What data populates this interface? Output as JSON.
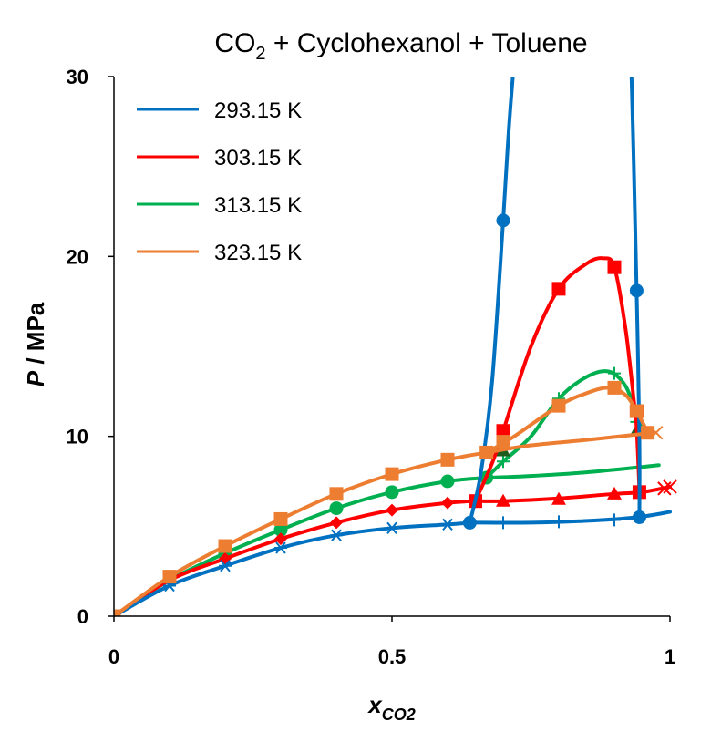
{
  "chart_data": {
    "type": "line",
    "title": "CO₂ + Cyclohexanol + Toluene",
    "title_main": "CO",
    "title_sub": "2",
    "title_rest": " + Cyclohexanol + Toluene",
    "xlabel_main": "x",
    "xlabel_sub": "CO2",
    "ylabel_main": "P",
    "ylabel_rest": " / MPa",
    "xlim": [
      0,
      1
    ],
    "ylim": [
      0,
      30
    ],
    "xticks": [
      0,
      0.5,
      1
    ],
    "xtick_labels": [
      "0",
      "0.5",
      "1"
    ],
    "yticks": [
      0,
      10,
      20,
      30
    ],
    "ytick_labels": [
      "0",
      "10",
      "20",
      "30"
    ],
    "grid": false,
    "legend_position": "top-left",
    "series": [
      {
        "name": "293.15 K",
        "color": "#0070C0",
        "bubble_curve": [
          [
            0,
            0
          ],
          [
            0.1,
            1.7
          ],
          [
            0.2,
            2.8
          ],
          [
            0.3,
            3.8
          ],
          [
            0.4,
            4.5
          ],
          [
            0.5,
            4.9
          ],
          [
            0.6,
            5.1
          ],
          [
            0.64,
            5.2
          ]
        ],
        "bubble_marker": "asterisk",
        "bubble_points": [
          [
            0.1,
            1.7
          ],
          [
            0.2,
            2.8
          ],
          [
            0.3,
            3.8
          ],
          [
            0.4,
            4.5
          ],
          [
            0.5,
            4.9
          ],
          [
            0.6,
            5.1
          ]
        ],
        "dew_curve": [
          [
            0.64,
            5.2
          ],
          [
            0.75,
            5.2
          ],
          [
            0.85,
            5.3
          ],
          [
            0.94,
            5.5
          ],
          [
            1.0,
            5.8
          ]
        ],
        "dew_marker": "plus",
        "dew_points": [
          [
            0.7,
            5.2
          ],
          [
            0.8,
            5.25
          ],
          [
            0.9,
            5.35
          ]
        ],
        "critical_curve": [
          [
            0.64,
            5.2
          ],
          [
            0.66,
            8
          ],
          [
            0.68,
            13
          ],
          [
            0.7,
            22
          ],
          [
            0.71,
            27
          ],
          [
            0.72,
            31
          ]
        ],
        "critical_curve_b": [
          [
            0.93,
            31
          ],
          [
            0.935,
            25
          ],
          [
            0.94,
            18.1
          ],
          [
            0.945,
            10
          ],
          [
            0.945,
            5.5
          ]
        ],
        "critical_marker": "circle",
        "critical_points": [
          [
            0.64,
            5.2
          ],
          [
            0.7,
            22
          ],
          [
            0.94,
            18.1
          ],
          [
            0.945,
            5.5
          ]
        ]
      },
      {
        "name": "303.15 K",
        "color": "#FF0000",
        "bubble_curve": [
          [
            0,
            0
          ],
          [
            0.1,
            2.0
          ],
          [
            0.2,
            3.2
          ],
          [
            0.3,
            4.3
          ],
          [
            0.4,
            5.2
          ],
          [
            0.5,
            5.9
          ],
          [
            0.6,
            6.3
          ],
          [
            0.65,
            6.4
          ]
        ],
        "bubble_marker": "diamond",
        "bubble_points": [
          [
            0.1,
            2.0
          ],
          [
            0.2,
            3.2
          ],
          [
            0.3,
            4.3
          ],
          [
            0.4,
            5.2
          ],
          [
            0.5,
            5.9
          ],
          [
            0.6,
            6.3
          ]
        ],
        "dew_curve": [
          [
            0.65,
            6.4
          ],
          [
            0.7,
            6.4
          ],
          [
            0.8,
            6.55
          ],
          [
            0.9,
            6.8
          ],
          [
            0.95,
            6.9
          ],
          [
            1.0,
            7.2
          ]
        ],
        "dew_marker": "triangle",
        "dew_points": [
          [
            0.7,
            6.4
          ],
          [
            0.8,
            6.5
          ],
          [
            0.9,
            6.8
          ]
        ],
        "loop_curve": [
          [
            0.65,
            6.4
          ],
          [
            0.68,
            8.5
          ],
          [
            0.7,
            10.3
          ],
          [
            0.75,
            15
          ],
          [
            0.8,
            18.2
          ],
          [
            0.85,
            19.6
          ],
          [
            0.88,
            19.9
          ],
          [
            0.9,
            19.4
          ],
          [
            0.92,
            16
          ],
          [
            0.935,
            12
          ],
          [
            0.94,
            10.5
          ],
          [
            0.945,
            7
          ],
          [
            0.945,
            6.9
          ]
        ],
        "loop_marker": "square",
        "loop_points": [
          [
            0.65,
            6.4
          ],
          [
            0.7,
            10.3
          ],
          [
            0.8,
            18.2
          ],
          [
            0.9,
            19.4
          ],
          [
            0.94,
            11.4
          ],
          [
            0.945,
            6.9
          ]
        ],
        "end_marker": "cross",
        "end_points": [
          [
            0.99,
            7.1
          ],
          [
            1.0,
            7.2
          ]
        ]
      },
      {
        "name": "313.15 K",
        "color": "#00B050",
        "bubble_curve": [
          [
            0,
            0
          ],
          [
            0.1,
            2.0
          ],
          [
            0.2,
            3.5
          ],
          [
            0.3,
            4.8
          ],
          [
            0.4,
            6.0
          ],
          [
            0.5,
            6.9
          ],
          [
            0.6,
            7.5
          ],
          [
            0.67,
            7.7
          ]
        ],
        "bubble_marker": "circle",
        "bubble_points": [
          [
            0.2,
            3.5
          ],
          [
            0.3,
            4.8
          ],
          [
            0.4,
            6.0
          ],
          [
            0.5,
            6.9
          ],
          [
            0.6,
            7.5
          ],
          [
            0.67,
            7.7
          ]
        ],
        "dew_curve": [
          [
            0.67,
            7.7
          ],
          [
            0.75,
            7.8
          ],
          [
            0.85,
            8.0
          ],
          [
            0.95,
            8.3
          ],
          [
            0.98,
            8.4
          ]
        ],
        "loop_curve": [
          [
            0.67,
            7.7
          ],
          [
            0.7,
            8.6
          ],
          [
            0.75,
            10.0
          ],
          [
            0.8,
            12.1
          ],
          [
            0.85,
            13.3
          ],
          [
            0.89,
            13.6
          ],
          [
            0.92,
            12.8
          ],
          [
            0.94,
            11.2
          ],
          [
            0.95,
            10.4
          ]
        ],
        "loop_marker": "plus",
        "loop_points": [
          [
            0.7,
            8.6
          ],
          [
            0.8,
            12.1
          ],
          [
            0.9,
            13.5
          ],
          [
            0.94,
            10.8
          ]
        ],
        "triangle_color": "#1E5C1E",
        "triangle_points": [
          [
            0.7,
            9.2
          ],
          [
            0.94,
            10.3
          ],
          [
            0.955,
            10.3
          ]
        ]
      },
      {
        "name": "323.15 K",
        "color": "#ED7D31",
        "bubble_curve": [
          [
            0,
            0
          ],
          [
            0.1,
            2.2
          ],
          [
            0.2,
            3.9
          ],
          [
            0.3,
            5.4
          ],
          [
            0.4,
            6.8
          ],
          [
            0.5,
            7.9
          ],
          [
            0.6,
            8.7
          ],
          [
            0.67,
            9.1
          ],
          [
            0.75,
            9.5
          ],
          [
            0.85,
            9.8
          ],
          [
            0.97,
            10.2
          ]
        ],
        "bubble_marker": "square",
        "bubble_points": [
          [
            0,
            0
          ],
          [
            0.1,
            2.2
          ],
          [
            0.2,
            3.9
          ],
          [
            0.3,
            5.4
          ],
          [
            0.4,
            6.8
          ],
          [
            0.5,
            7.9
          ],
          [
            0.6,
            8.7
          ],
          [
            0.67,
            9.1
          ],
          [
            0.7,
            9.7
          ],
          [
            0.8,
            11.7
          ],
          [
            0.9,
            12.7
          ],
          [
            0.94,
            11.4
          ],
          [
            0.96,
            10.2
          ]
        ],
        "dew_curve": [
          [
            0.67,
            9.1
          ],
          [
            0.72,
            10.0
          ],
          [
            0.8,
            11.7
          ],
          [
            0.85,
            12.4
          ],
          [
            0.89,
            12.7
          ],
          [
            0.92,
            12.3
          ],
          [
            0.94,
            11.4
          ],
          [
            0.96,
            10.2
          ]
        ],
        "end_marker": "cross",
        "end_points": [
          [
            0.975,
            10.2
          ]
        ]
      }
    ]
  }
}
